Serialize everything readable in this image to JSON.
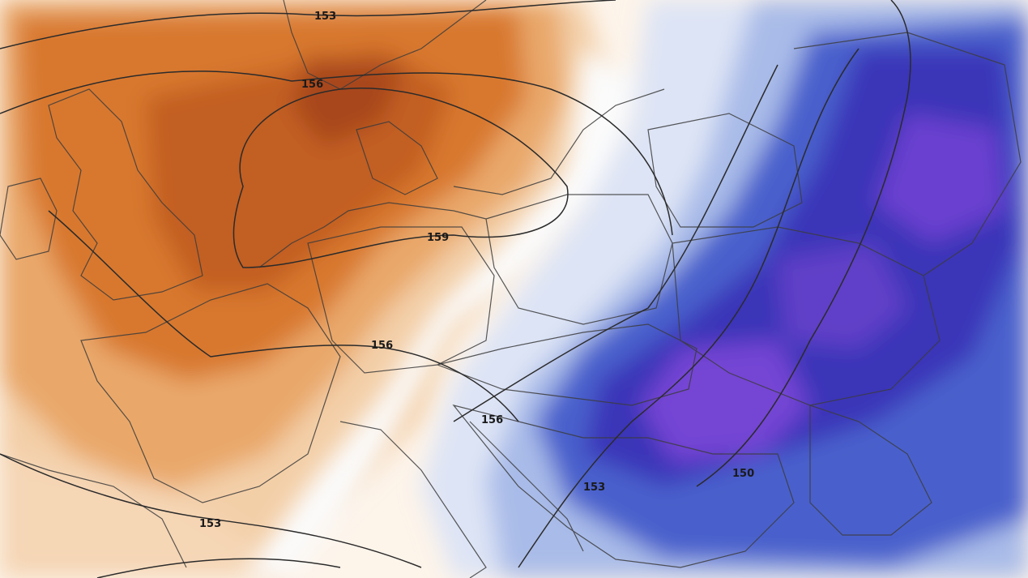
{
  "map": {
    "contour_labels": {
      "c1": "153",
      "c2": "156",
      "c3": "159",
      "c4": "156",
      "c5": "156",
      "c6": "153",
      "c7": "150",
      "c8": "153"
    }
  },
  "colors": {
    "warm_light": "#f7e2cc",
    "warm_mid": "#e9a86a",
    "warm_strong": "#d46e2a",
    "warm_deep": "#b8501c",
    "cold_light": "#dfe6f6",
    "cold_mid": "#9fb3e6",
    "cold_strong": "#4054c8",
    "cold_deep": "#3a2eb0",
    "cold_purple": "#6b3ad0",
    "contour": "#2b2b2b",
    "border": "#3c3c3c"
  }
}
